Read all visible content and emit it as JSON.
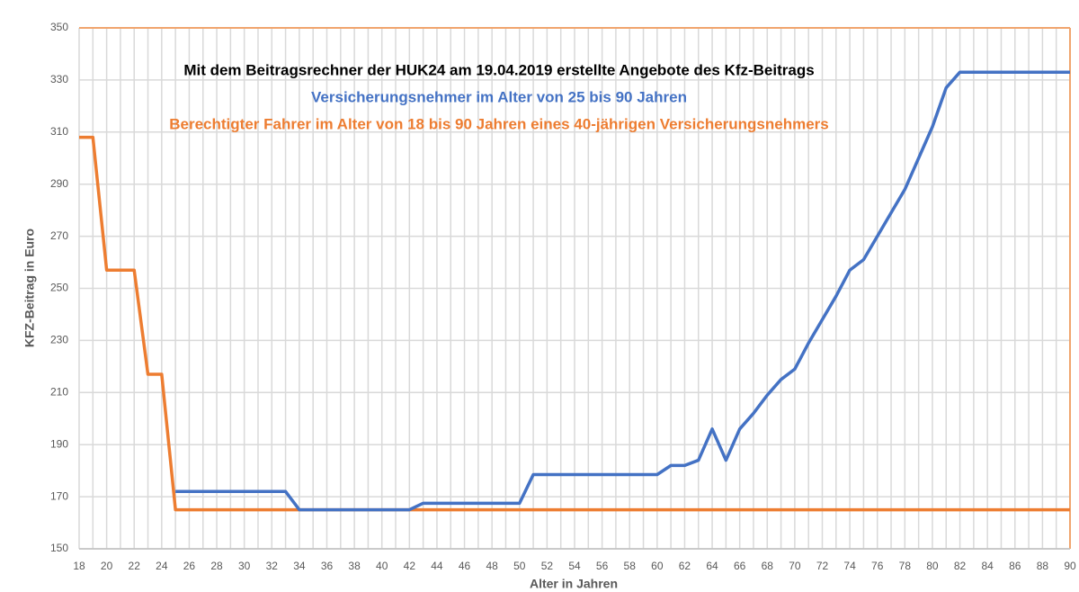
{
  "chart_data": {
    "type": "line",
    "title": "Mit dem Beitragsrechner der HUK24 am 19.04.2019 erstellte Angebote des Kfz-Beitrags",
    "subtitles": [
      "Versicherungsnehmer im Alter von 25 bis 90 Jahren",
      "Berechtigter Fahrer im Alter von 18 bis 90 Jahren eines 40-jährigen Versicherungsnehmers"
    ],
    "x_label": "Alter in Jahren",
    "y_label": "KFZ-Beitrag in Euro",
    "x": [
      18,
      19,
      20,
      21,
      22,
      23,
      24,
      25,
      26,
      27,
      28,
      29,
      30,
      31,
      32,
      33,
      34,
      35,
      36,
      37,
      38,
      39,
      40,
      41,
      42,
      43,
      44,
      45,
      46,
      47,
      48,
      49,
      50,
      51,
      52,
      53,
      54,
      55,
      56,
      57,
      58,
      59,
      60,
      61,
      62,
      63,
      64,
      65,
      66,
      67,
      68,
      69,
      70,
      71,
      72,
      73,
      74,
      75,
      76,
      77,
      78,
      79,
      80,
      81,
      82,
      83,
      84,
      85,
      86,
      87,
      88,
      89,
      90
    ],
    "series": [
      {
        "name": "Versicherungsnehmer im Alter von 25 bis 90 Jahren",
        "color": "#4472c4",
        "values": [
          null,
          null,
          null,
          null,
          null,
          null,
          null,
          172,
          172,
          172,
          172,
          172,
          172,
          172,
          172,
          172,
          165,
          165,
          165,
          165,
          165,
          165,
          165,
          165,
          165,
          167.5,
          167.5,
          167.5,
          167.5,
          167.5,
          167.5,
          167.5,
          167.5,
          178.5,
          178.5,
          178.5,
          178.5,
          178.5,
          178.5,
          178.5,
          178.5,
          178.5,
          178.5,
          182,
          182,
          184,
          196,
          184,
          196,
          202,
          209,
          215,
          219,
          229,
          238,
          247,
          257,
          261,
          270,
          279,
          288,
          300,
          312,
          327,
          333,
          333,
          333,
          333,
          333,
          333,
          333,
          333,
          333
        ]
      },
      {
        "name": "Berechtigter Fahrer im Alter von 18 bis 90 Jahren eines 40-jährigen Versicherungsnehmers",
        "color": "#ed7d31",
        "values": [
          308,
          308,
          257,
          257,
          257,
          217,
          217,
          165,
          165,
          165,
          165,
          165,
          165,
          165,
          165,
          165,
          165,
          165,
          165,
          165,
          165,
          165,
          165,
          165,
          165,
          165,
          165,
          165,
          165,
          165,
          165,
          165,
          165,
          165,
          165,
          165,
          165,
          165,
          165,
          165,
          165,
          165,
          165,
          165,
          165,
          165,
          165,
          165,
          165,
          165,
          165,
          165,
          165,
          165,
          165,
          165,
          165,
          165,
          165,
          165,
          165,
          165,
          165,
          165,
          165,
          165,
          165,
          165,
          165,
          165,
          165,
          165,
          165
        ]
      }
    ],
    "xlim": [
      18,
      90
    ],
    "xticks": [
      18,
      20,
      22,
      24,
      26,
      28,
      30,
      32,
      34,
      36,
      38,
      40,
      42,
      44,
      46,
      48,
      50,
      52,
      54,
      56,
      58,
      60,
      62,
      64,
      66,
      68,
      70,
      72,
      74,
      76,
      78,
      80,
      82,
      84,
      86,
      88,
      90
    ],
    "ylim": [
      150,
      350
    ],
    "yticks": [
      150,
      170,
      190,
      210,
      230,
      250,
      270,
      290,
      310,
      330,
      350
    ],
    "grid": true
  }
}
